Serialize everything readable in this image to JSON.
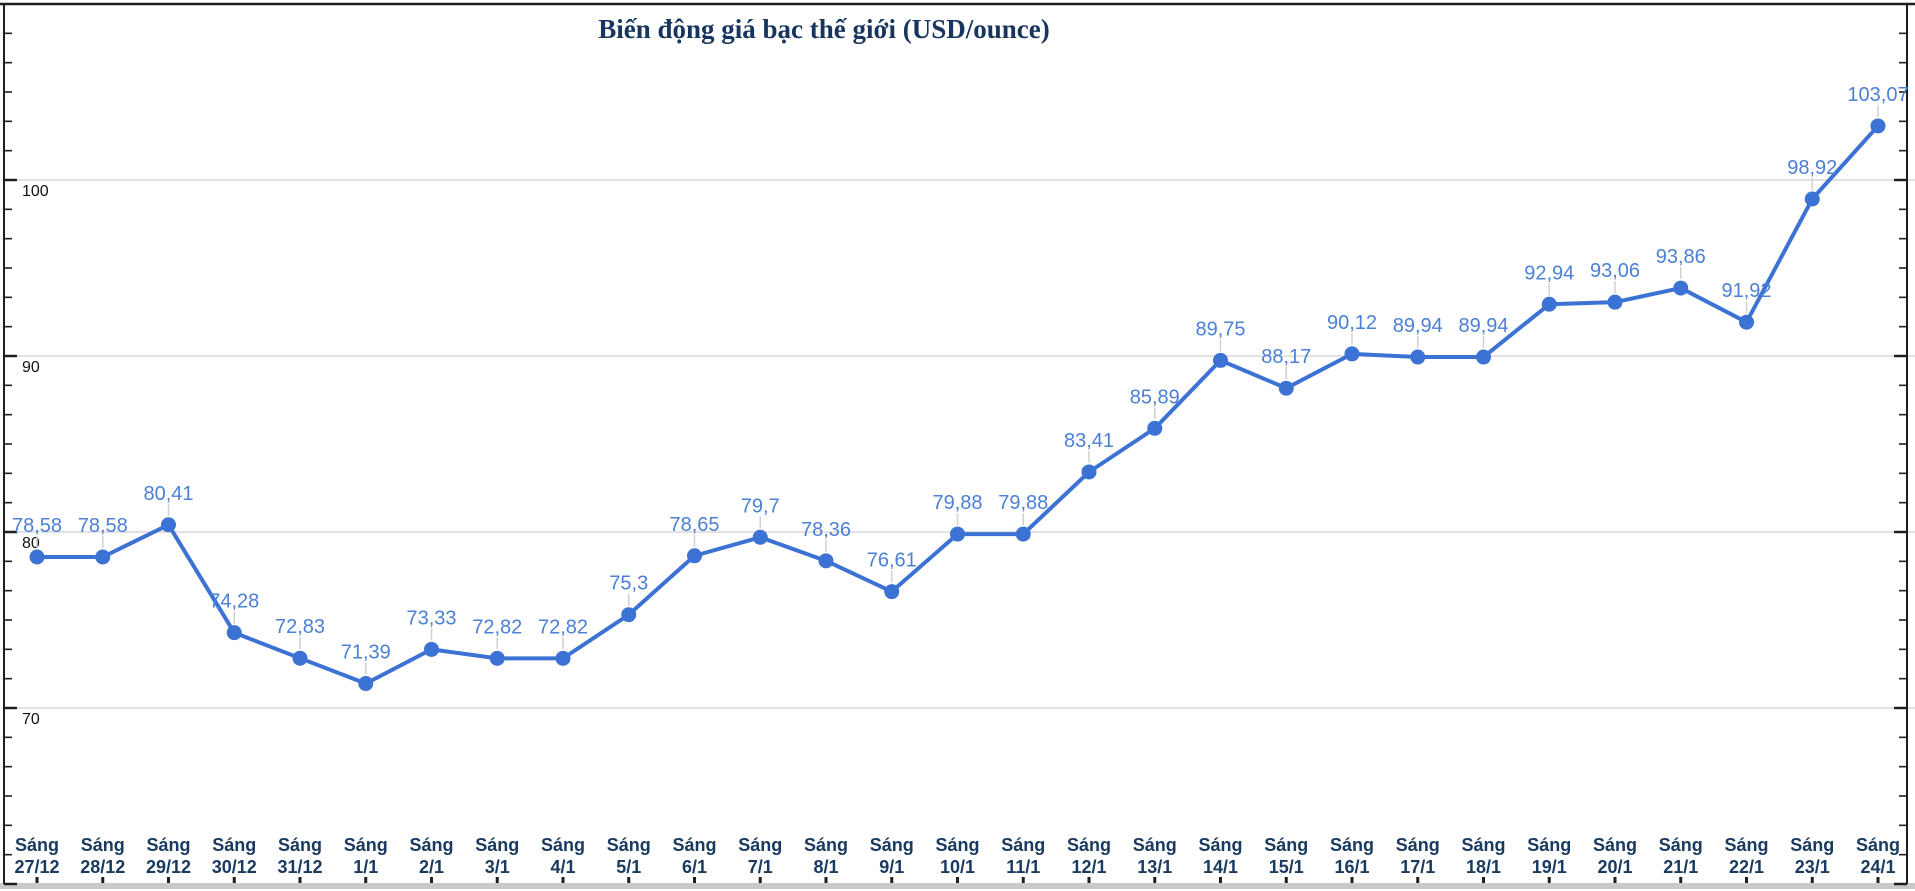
{
  "title": "Biến động giá bạc thế giới (USD/ounce)",
  "chart_data": {
    "type": "line",
    "title": "Biến động giá bạc thế giới (USD/ounce)",
    "x_label_prefix": "Sáng",
    "categories": [
      "27/12",
      "28/12",
      "29/12",
      "30/12",
      "31/12",
      "1/1",
      "2/1",
      "3/1",
      "4/1",
      "5/1",
      "6/1",
      "7/1",
      "8/1",
      "9/1",
      "10/1",
      "11/1",
      "12/1",
      "13/1",
      "14/1",
      "15/1",
      "16/1",
      "17/1",
      "18/1",
      "19/1",
      "20/1",
      "21/1",
      "22/1",
      "23/1",
      "24/1"
    ],
    "values": [
      78.58,
      78.58,
      80.41,
      74.28,
      72.83,
      71.39,
      73.33,
      72.82,
      72.82,
      75.3,
      78.65,
      79.7,
      78.36,
      76.61,
      79.88,
      79.88,
      83.41,
      85.89,
      89.75,
      88.17,
      90.12,
      89.94,
      89.94,
      92.94,
      93.06,
      93.86,
      91.92,
      98.92,
      103.07
    ],
    "point_labels": [
      "78,58",
      "78,58",
      "80,41",
      "74,28",
      "72,83",
      "71,39",
      "73,33",
      "72,82",
      "72,82",
      "75,3",
      "78,65",
      "79,7",
      "78,36",
      "76,61",
      "79,88",
      "79,88",
      "83,41",
      "85,89",
      "89,75",
      "88,17",
      "90,12",
      "89,94",
      "89,94",
      "92,94",
      "93,06",
      "93,86",
      "91,92",
      "98,92",
      "103,07"
    ],
    "y_ticks": [
      70,
      80,
      90,
      100
    ],
    "ylim": [
      60,
      110
    ],
    "grid": true,
    "legend_position": "none",
    "colors": {
      "series": "#3c72d4",
      "point_label": "#4b80d5",
      "x_label": "#1b3a60",
      "y_label": "#111111",
      "gridline": "#e2e2e2",
      "leader_line": "#d0d0d0",
      "axis": "#1f1f1f",
      "bottom_bar": "#c9c9c9",
      "title": "#17355e"
    }
  }
}
